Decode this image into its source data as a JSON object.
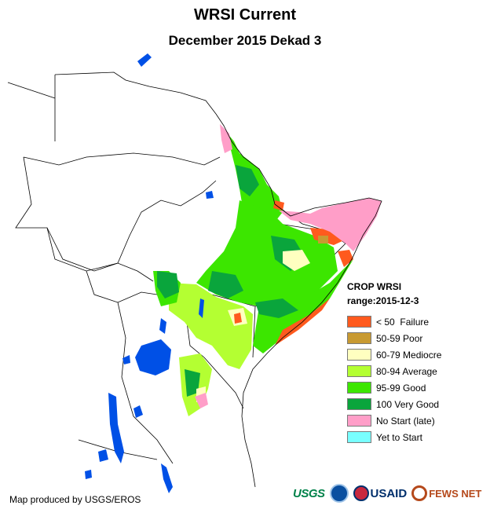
{
  "title": "WRSI Current",
  "subtitle": "December 2015 Dekad 3",
  "legend": {
    "heading": "CROP WRSI",
    "range": "range:2015-12-3",
    "items": [
      {
        "label": "< 50  Failure",
        "color": "#ff5a1e"
      },
      {
        "label": "50-59 Poor",
        "color": "#c89a32"
      },
      {
        "label": "60-79 Mediocre",
        "color": "#ffffc0"
      },
      {
        "label": "80-94 Average",
        "color": "#b4ff32"
      },
      {
        "label": "95-99 Good",
        "color": "#3ce600"
      },
      {
        "label": "100 Very Good",
        "color": "#0aa53c"
      },
      {
        "label": "No Start (late)",
        "color": "#ff9ec8"
      },
      {
        "label": "Yet to Start",
        "color": "#78ffff"
      }
    ]
  },
  "credit": "Map produced by USGS/EROS",
  "logos": {
    "usgs": "USGS",
    "noaa": "noaa-seal",
    "usaid": "USAID",
    "fews": "FEWS NET"
  },
  "colors": {
    "water": "#0050e6",
    "border": "#000000"
  }
}
